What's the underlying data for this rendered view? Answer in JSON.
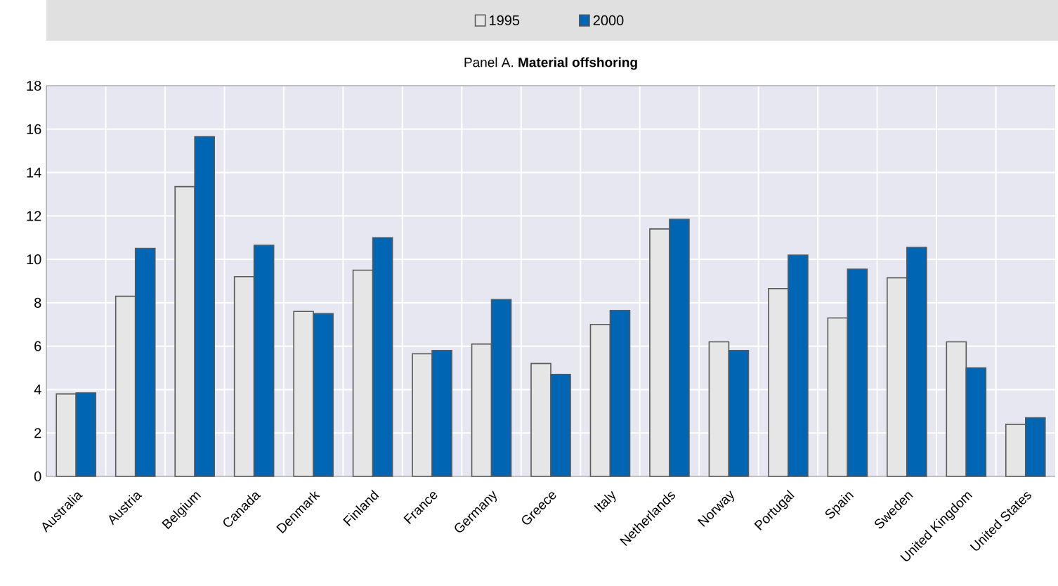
{
  "chart_data": {
    "type": "bar",
    "title": "Panel A. **Material offshoring**",
    "categories": [
      "Australia",
      "Austria",
      "Belgium",
      "Canada",
      "Denmark",
      "Finland",
      "France",
      "Germany",
      "Greece",
      "Italy",
      "Netherlands",
      "Norway",
      "Portugal",
      "Spain",
      "Sweden",
      "United Kingdom",
      "United States"
    ],
    "series": [
      {
        "name": "1995",
        "color": "#e6e6e6",
        "values": [
          3.8,
          8.3,
          13.35,
          9.2,
          7.6,
          9.5,
          5.65,
          6.1,
          5.2,
          7.0,
          11.4,
          6.2,
          8.65,
          7.3,
          9.15,
          6.2,
          2.4
        ]
      },
      {
        "name": "2000",
        "color": "#0066b3",
        "values": [
          3.85,
          10.5,
          15.65,
          10.65,
          7.5,
          11.0,
          5.8,
          8.15,
          4.7,
          7.65,
          11.85,
          5.8,
          10.2,
          9.55,
          10.55,
          5.0,
          2.7
        ]
      }
    ],
    "ylim": [
      0,
      18
    ],
    "yticks": [
      0,
      2,
      4,
      6,
      8,
      10,
      12,
      14,
      16,
      18
    ],
    "grid": true,
    "legend": "top"
  }
}
